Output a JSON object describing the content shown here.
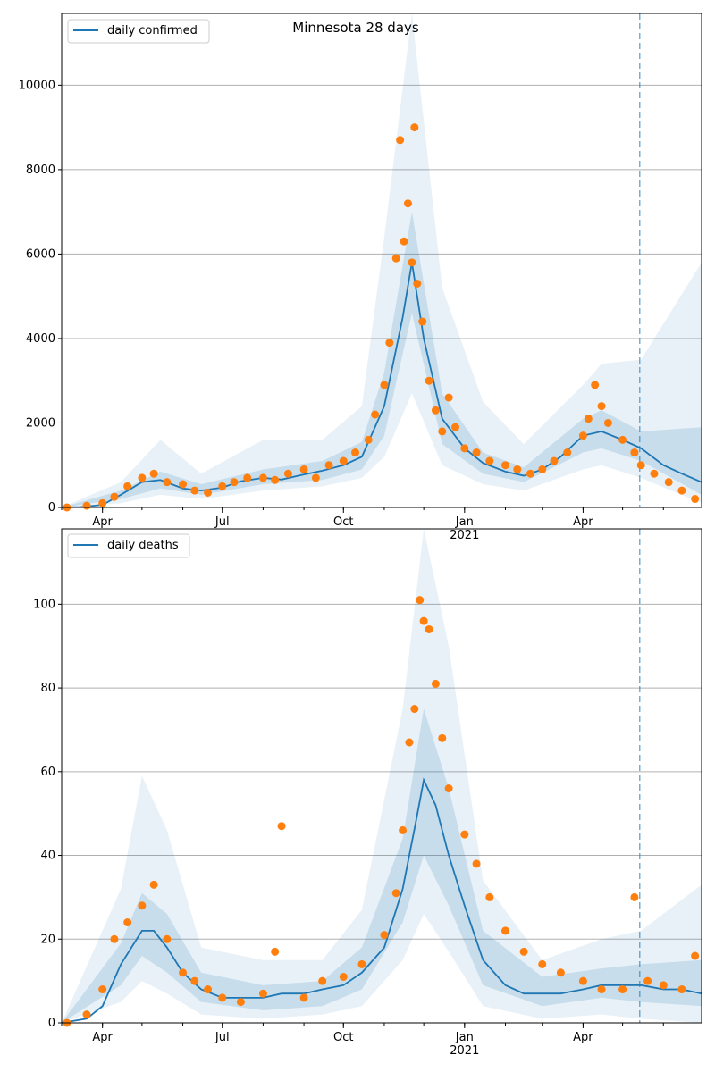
{
  "figure": {
    "title": "Minnesota 28 days",
    "colors": {
      "model_line": "#1f77b4",
      "observed_points": "#ff7f0e",
      "band": "#1f77b4",
      "grid": "#b0b0b0",
      "divider": "#1f77b4"
    }
  },
  "chart_data": [
    {
      "type": "line",
      "panel": "daily-confirmed",
      "legend": [
        "daily confirmed"
      ],
      "legend_position": "top-left",
      "title": "Minnesota 28 days",
      "xlim": [
        "2020-03-01",
        "2021-06-30"
      ],
      "ylim": [
        0,
        11700
      ],
      "y_ticks": [
        0,
        2000,
        4000,
        6000,
        8000,
        10000
      ],
      "y_tick_labels": [
        "0",
        "2000",
        "4000",
        "6000",
        "8000",
        "10000"
      ],
      "x_ticks": [
        "2020-04-01",
        "2020-07-01",
        "2020-10-01",
        "2021-01-01",
        "2021-04-01"
      ],
      "x_tick_labels": [
        "Apr",
        "Jul",
        "Oct",
        "Jan\n2021",
        "Apr"
      ],
      "grid": "y",
      "forecast_start": "2021-05-14",
      "series": [
        {
          "name": "daily confirmed",
          "kind": "model",
          "x": [
            "2020-03-01",
            "2020-03-15",
            "2020-04-01",
            "2020-04-15",
            "2020-05-01",
            "2020-05-15",
            "2020-06-01",
            "2020-06-15",
            "2020-07-01",
            "2020-07-15",
            "2020-08-01",
            "2020-08-15",
            "2020-09-01",
            "2020-09-15",
            "2020-10-01",
            "2020-10-15",
            "2020-11-01",
            "2020-11-15",
            "2020-11-22",
            "2020-12-01",
            "2020-12-15",
            "2021-01-01",
            "2021-01-15",
            "2021-02-01",
            "2021-02-15",
            "2021-03-01",
            "2021-03-15",
            "2021-04-01",
            "2021-04-15",
            "2021-05-01",
            "2021-05-15",
            "2021-06-01",
            "2021-06-15",
            "2021-06-30"
          ],
          "values": [
            0,
            10,
            60,
            300,
            600,
            650,
            450,
            400,
            470,
            620,
            700,
            660,
            780,
            870,
            1000,
            1200,
            2400,
            4500,
            5800,
            4000,
            2100,
            1400,
            1050,
            850,
            750,
            900,
            1200,
            1700,
            1800,
            1600,
            1400,
            1000,
            800,
            600
          ]
        },
        {
          "name": "observed",
          "kind": "points",
          "x": [
            "2020-03-05",
            "2020-03-20",
            "2020-04-01",
            "2020-04-10",
            "2020-04-20",
            "2020-05-01",
            "2020-05-10",
            "2020-05-20",
            "2020-06-01",
            "2020-06-10",
            "2020-06-20",
            "2020-07-01",
            "2020-07-10",
            "2020-07-20",
            "2020-08-01",
            "2020-08-10",
            "2020-08-20",
            "2020-09-01",
            "2020-09-10",
            "2020-09-20",
            "2020-10-01",
            "2020-10-10",
            "2020-10-20",
            "2020-10-25",
            "2020-11-01",
            "2020-11-05",
            "2020-11-10",
            "2020-11-13",
            "2020-11-16",
            "2020-11-19",
            "2020-11-22",
            "2020-11-24",
            "2020-11-26",
            "2020-11-30",
            "2020-12-05",
            "2020-12-10",
            "2020-12-15",
            "2020-12-20",
            "2020-12-25",
            "2021-01-01",
            "2021-01-10",
            "2021-01-20",
            "2021-02-01",
            "2021-02-10",
            "2021-02-20",
            "2021-03-01",
            "2021-03-10",
            "2021-03-20",
            "2021-04-01",
            "2021-04-05",
            "2021-04-10",
            "2021-04-15",
            "2021-04-20",
            "2021-05-01",
            "2021-05-10",
            "2021-05-15",
            "2021-05-25",
            "2021-06-05",
            "2021-06-15",
            "2021-06-25"
          ],
          "values": [
            0,
            40,
            100,
            250,
            500,
            700,
            800,
            600,
            550,
            400,
            350,
            500,
            600,
            700,
            700,
            650,
            800,
            900,
            700,
            1000,
            1100,
            1300,
            1600,
            2200,
            2900,
            3900,
            5900,
            8700,
            6300,
            7200,
            5800,
            9000,
            5300,
            4400,
            3000,
            2300,
            1800,
            2600,
            1900,
            1400,
            1300,
            1100,
            1000,
            900,
            800,
            900,
            1100,
            1300,
            1700,
            2100,
            2900,
            2400,
            2000,
            1600,
            1300,
            1000,
            800,
            600,
            400,
            200
          ]
        }
      ],
      "bands": [
        {
          "name": "inner band",
          "x": [
            "2020-03-01",
            "2020-04-15",
            "2020-05-15",
            "2020-06-15",
            "2020-08-01",
            "2020-09-15",
            "2020-10-15",
            "2020-11-01",
            "2020-11-22",
            "2020-12-15",
            "2021-01-15",
            "2021-02-15",
            "2021-04-01",
            "2021-04-15",
            "2021-05-15",
            "2021-06-30"
          ],
          "low": [
            0,
            200,
            450,
            300,
            550,
            650,
            900,
            1700,
            4600,
            1500,
            800,
            600,
            1300,
            1400,
            1100,
            300
          ],
          "high": [
            0,
            400,
            850,
            550,
            900,
            1100,
            1550,
            3200,
            7000,
            2700,
            1300,
            950,
            2100,
            2300,
            1800,
            1900
          ]
        },
        {
          "name": "outer band",
          "x": [
            "2020-03-01",
            "2020-04-15",
            "2020-05-15",
            "2020-06-15",
            "2020-08-01",
            "2020-09-15",
            "2020-10-15",
            "2020-11-01",
            "2020-11-22",
            "2020-12-15",
            "2021-01-15",
            "2021-02-15",
            "2021-04-01",
            "2021-04-15",
            "2021-05-15",
            "2021-06-30"
          ],
          "low": [
            0,
            100,
            300,
            200,
            400,
            500,
            700,
            1200,
            2700,
            1000,
            550,
            400,
            900,
            1000,
            700,
            100
          ],
          "high": [
            0,
            600,
            1600,
            800,
            1600,
            1600,
            2400,
            6400,
            11700,
            5200,
            2500,
            1500,
            2900,
            3400,
            3500,
            5800
          ]
        }
      ]
    },
    {
      "type": "line",
      "panel": "daily-deaths",
      "legend": [
        "daily deaths"
      ],
      "legend_position": "top-left",
      "xlim": [
        "2020-03-01",
        "2021-06-30"
      ],
      "ylim": [
        0,
        118
      ],
      "y_ticks": [
        0,
        20,
        40,
        60,
        80,
        100
      ],
      "y_tick_labels": [
        "0",
        "20",
        "40",
        "60",
        "80",
        "100"
      ],
      "x_ticks": [
        "2020-04-01",
        "2020-07-01",
        "2020-10-01",
        "2021-01-01",
        "2021-04-01"
      ],
      "x_tick_labels": [
        "Apr",
        "Jul",
        "Oct",
        "Jan\n2021",
        "Apr"
      ],
      "grid": "y",
      "forecast_start": "2021-05-14",
      "series": [
        {
          "name": "daily deaths",
          "kind": "model",
          "x": [
            "2020-03-01",
            "2020-03-20",
            "2020-04-01",
            "2020-04-15",
            "2020-05-01",
            "2020-05-10",
            "2020-05-20",
            "2020-06-01",
            "2020-06-15",
            "2020-07-01",
            "2020-07-15",
            "2020-08-01",
            "2020-08-15",
            "2020-09-01",
            "2020-09-15",
            "2020-10-01",
            "2020-10-15",
            "2020-11-01",
            "2020-11-15",
            "2020-11-25",
            "2020-12-01",
            "2020-12-10",
            "2020-12-20",
            "2021-01-01",
            "2021-01-15",
            "2021-02-01",
            "2021-02-15",
            "2021-03-01",
            "2021-03-15",
            "2021-04-01",
            "2021-04-15",
            "2021-05-01",
            "2021-05-15",
            "2021-06-01",
            "2021-06-15",
            "2021-06-30"
          ],
          "values": [
            0,
            1,
            4,
            14,
            22,
            22,
            18,
            12,
            8,
            6,
            6,
            6,
            7,
            7,
            8,
            9,
            12,
            18,
            32,
            48,
            58,
            52,
            40,
            28,
            15,
            9,
            7,
            7,
            7,
            8,
            9,
            9,
            9,
            8,
            8,
            7
          ]
        },
        {
          "name": "observed",
          "kind": "points",
          "x": [
            "2020-03-05",
            "2020-03-20",
            "2020-04-01",
            "2020-04-10",
            "2020-04-20",
            "2020-05-01",
            "2020-05-10",
            "2020-05-20",
            "2020-06-01",
            "2020-06-10",
            "2020-06-20",
            "2020-07-01",
            "2020-07-15",
            "2020-08-01",
            "2020-08-10",
            "2020-08-15",
            "2020-09-01",
            "2020-09-15",
            "2020-10-01",
            "2020-10-15",
            "2020-11-01",
            "2020-11-10",
            "2020-11-15",
            "2020-11-20",
            "2020-11-24",
            "2020-11-28",
            "2020-12-01",
            "2020-12-05",
            "2020-12-10",
            "2020-12-15",
            "2020-12-20",
            "2021-01-01",
            "2021-01-10",
            "2021-01-20",
            "2021-02-01",
            "2021-02-15",
            "2021-03-01",
            "2021-03-15",
            "2021-04-01",
            "2021-04-15",
            "2021-05-01",
            "2021-05-10",
            "2021-05-20",
            "2021-06-01",
            "2021-06-15",
            "2021-06-25"
          ],
          "values": [
            0,
            2,
            8,
            20,
            24,
            28,
            33,
            20,
            12,
            10,
            8,
            6,
            5,
            7,
            17,
            47,
            6,
            10,
            11,
            14,
            21,
            31,
            46,
            67,
            75,
            101,
            96,
            94,
            81,
            68,
            56,
            45,
            38,
            30,
            22,
            17,
            14,
            12,
            10,
            8,
            8,
            30,
            10,
            9,
            8,
            16
          ]
        }
      ],
      "bands": [
        {
          "name": "inner band",
          "x": [
            "2020-03-01",
            "2020-04-15",
            "2020-05-01",
            "2020-05-20",
            "2020-06-15",
            "2020-08-01",
            "2020-09-15",
            "2020-10-15",
            "2020-11-15",
            "2020-12-01",
            "2020-12-20",
            "2021-01-15",
            "2021-03-01",
            "2021-04-15",
            "2021-05-15",
            "2021-06-30"
          ],
          "low": [
            0,
            9,
            16,
            12,
            5,
            3,
            4,
            8,
            24,
            40,
            28,
            9,
            4,
            6,
            5,
            4
          ],
          "high": [
            0,
            19,
            31,
            26,
            12,
            9,
            10,
            18,
            44,
            75,
            56,
            22,
            11,
            13,
            14,
            15
          ]
        },
        {
          "name": "outer band",
          "x": [
            "2020-03-01",
            "2020-04-15",
            "2020-05-01",
            "2020-05-20",
            "2020-06-15",
            "2020-08-01",
            "2020-09-15",
            "2020-10-15",
            "2020-11-15",
            "2020-12-01",
            "2020-12-20",
            "2021-01-15",
            "2021-03-01",
            "2021-04-15",
            "2021-05-15",
            "2021-06-30"
          ],
          "low": [
            0,
            5,
            10,
            7,
            2,
            1,
            2,
            4,
            15,
            26,
            17,
            4,
            1,
            2,
            1,
            0
          ],
          "high": [
            0,
            32,
            59,
            46,
            18,
            15,
            15,
            27,
            75,
            118,
            90,
            34,
            15,
            20,
            22,
            33
          ]
        }
      ]
    }
  ]
}
